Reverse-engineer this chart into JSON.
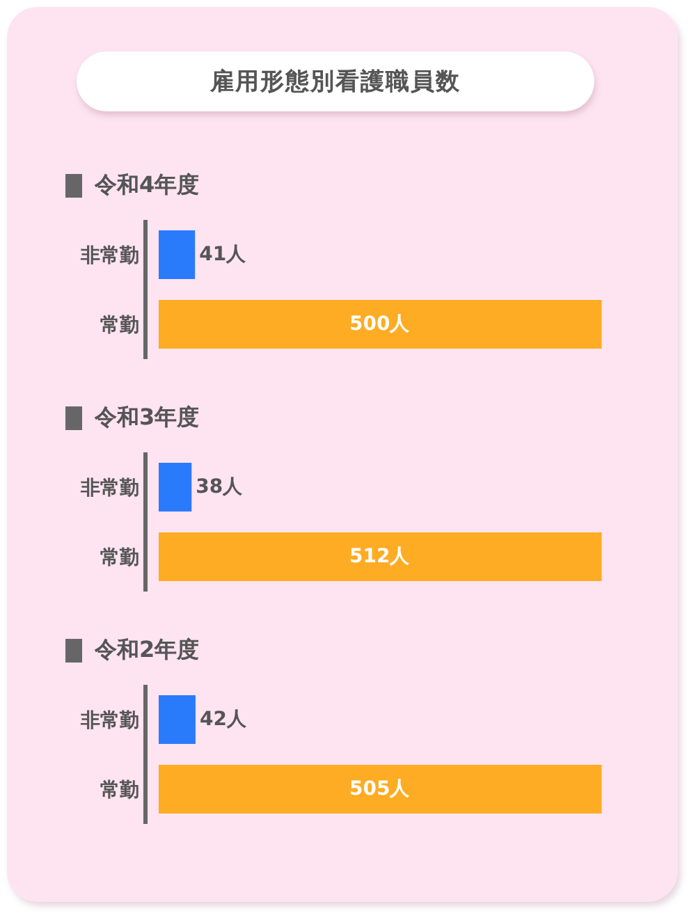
{
  "chart_data": [
    {
      "type": "other",
      "title": "雇用形態別看護職員数"
    },
    {
      "type": "bar",
      "orientation": "horizontal",
      "title": "令和4年度",
      "categories": [
        "非常勤",
        "常勤"
      ],
      "values": [
        41,
        500
      ],
      "colors": [
        "#2a7bfc",
        "#feac23"
      ],
      "value_labels": [
        "41人",
        "500人"
      ],
      "tick_labels": "y"
    },
    {
      "type": "bar",
      "orientation": "horizontal",
      "title": "令和3年度",
      "categories": [
        "非常勤",
        "常勤"
      ],
      "values": [
        38,
        512
      ],
      "colors": [
        "#2a7bfc",
        "#feac23"
      ],
      "value_labels": [
        "38人",
        "512人"
      ],
      "tick_labels": "y"
    },
    {
      "type": "bar",
      "orientation": "horizontal",
      "title": "令和2年度",
      "categories": [
        "非常勤",
        "常勤"
      ],
      "values": [
        42,
        505
      ],
      "colors": [
        "#2a7bfc",
        "#feac23"
      ],
      "value_labels": [
        "42人",
        "505人"
      ],
      "tick_labels": "y"
    }
  ]
}
